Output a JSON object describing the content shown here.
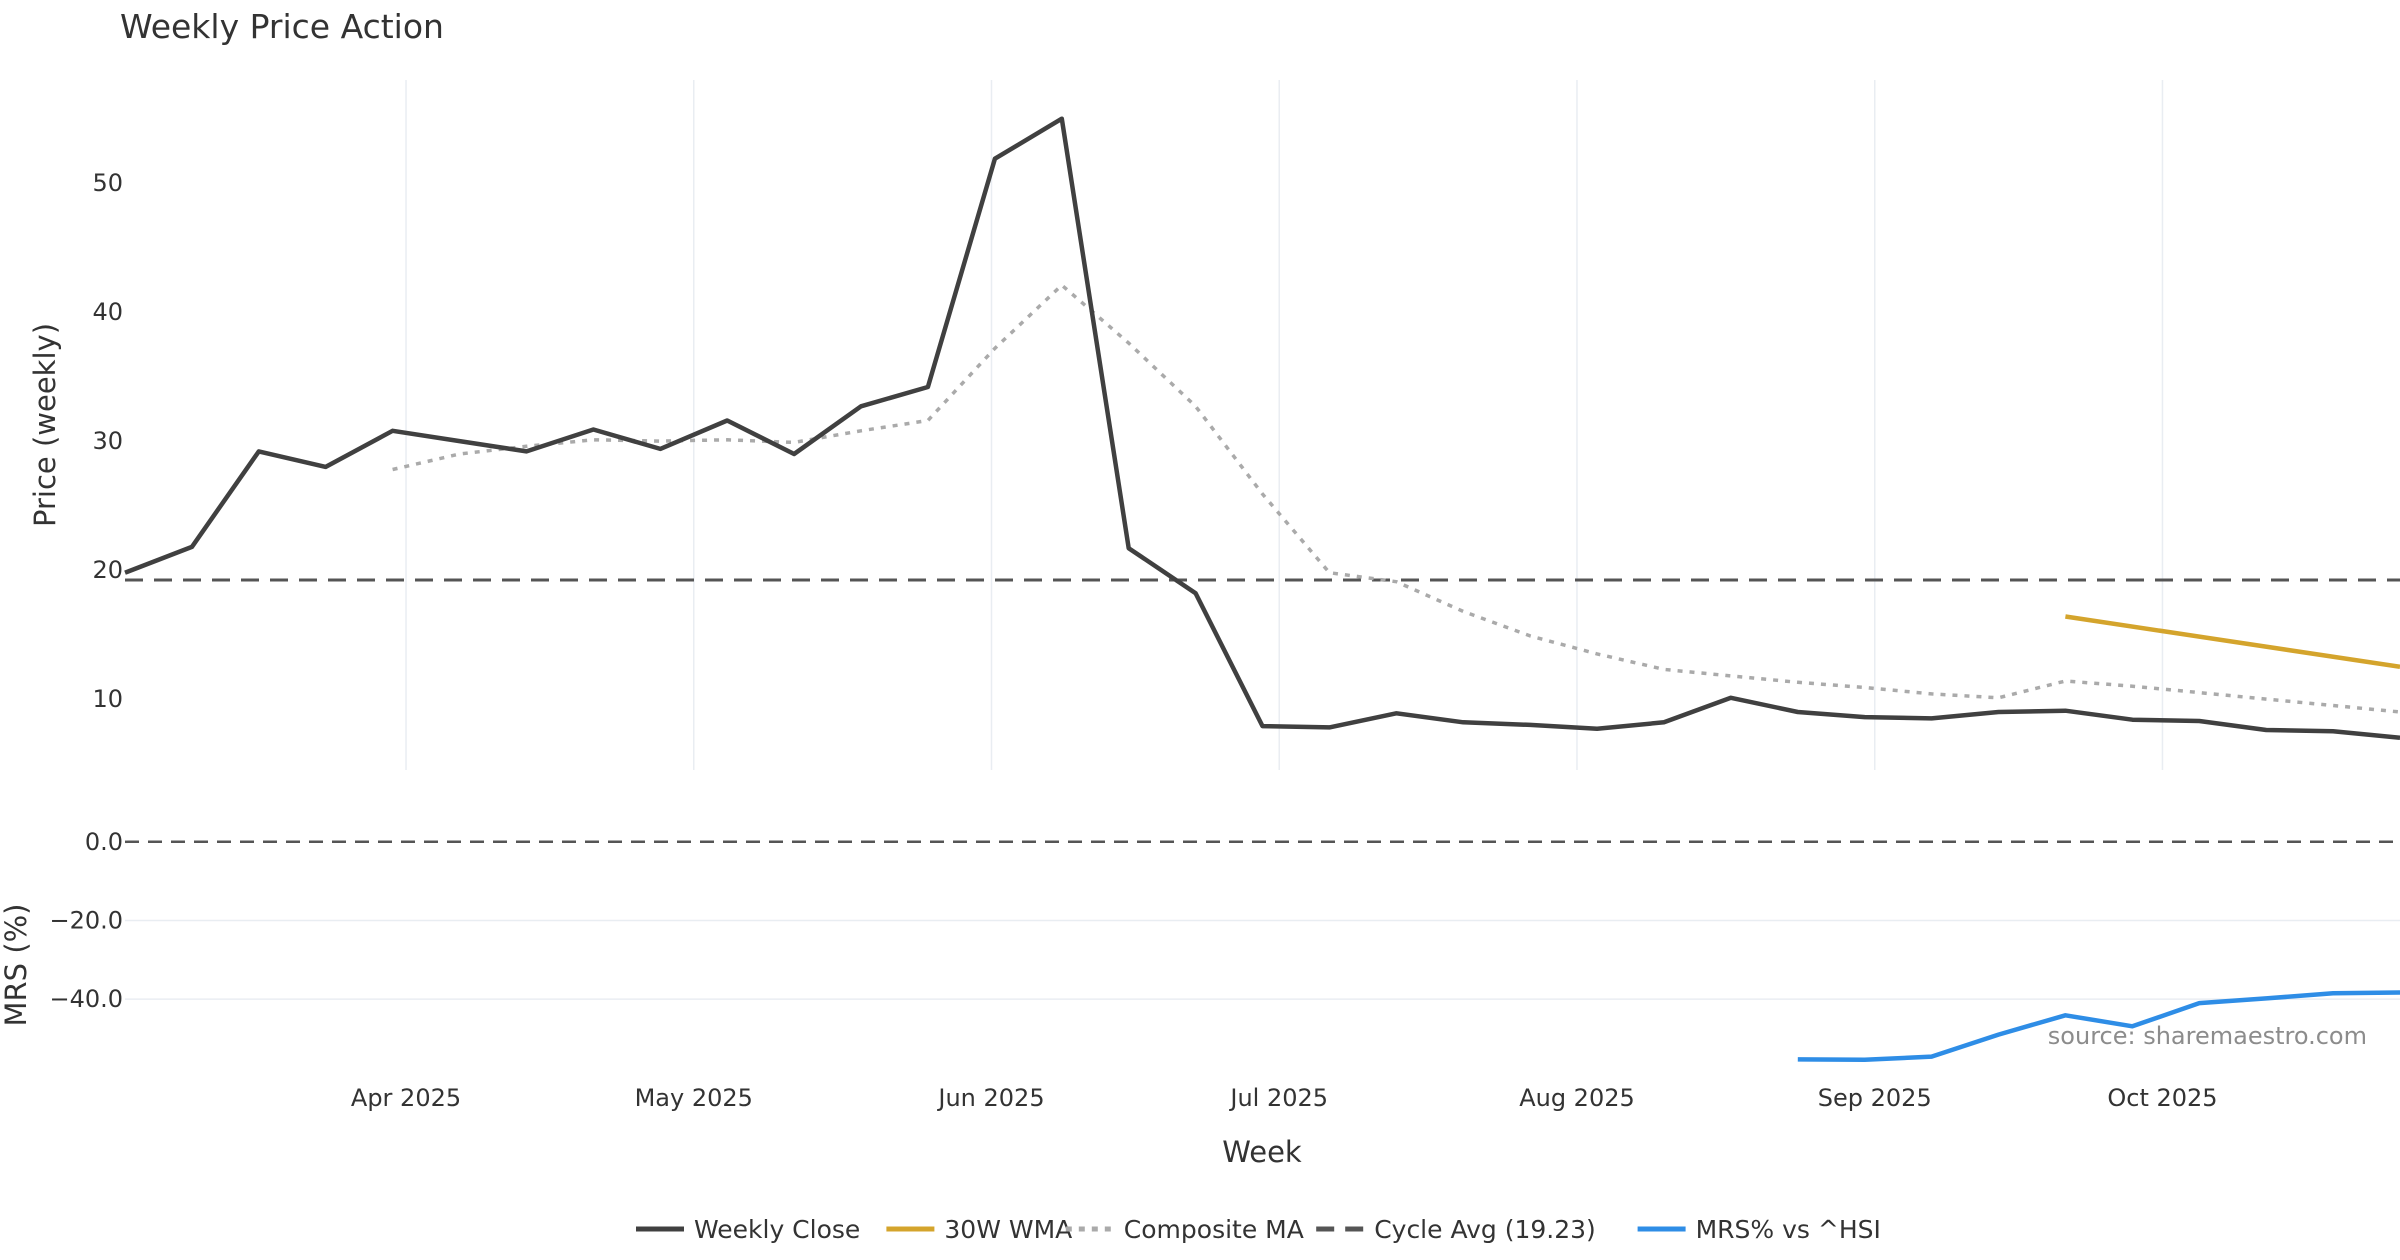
{
  "chart_data": {
    "type": "line",
    "title": "Weekly Price Action",
    "source_note": "source: sharemaestro.com",
    "xlabel": "Week",
    "x_ticks": [
      {
        "week": 4.2,
        "label": "Apr 2025"
      },
      {
        "week": 8.5,
        "label": "May 2025"
      },
      {
        "week": 12.95,
        "label": "Jun 2025"
      },
      {
        "week": 17.25,
        "label": "Jul 2025"
      },
      {
        "week": 21.7,
        "label": "Aug 2025"
      },
      {
        "week": 26.15,
        "label": "Sep 2025"
      },
      {
        "week": 30.45,
        "label": "Oct 2025"
      }
    ],
    "x_range": [
      0,
      34
    ],
    "price_panel": {
      "ylabel": "Price (weekly)",
      "ylim": [
        4.5,
        58
      ],
      "yticks": [
        10,
        20,
        30,
        40,
        50
      ],
      "series": [
        {
          "name": "Weekly Close",
          "color": "#404040",
          "style": "solid",
          "x": [
            0,
            1,
            2,
            3,
            4,
            5,
            6,
            7,
            8,
            9,
            10,
            11,
            12,
            13,
            14,
            15,
            16,
            17,
            18,
            19,
            20,
            21,
            22,
            23,
            24,
            25,
            26,
            27,
            28,
            29,
            30,
            31,
            32,
            33,
            34
          ],
          "values": [
            19.8,
            21.8,
            29.2,
            28.0,
            30.8,
            30.0,
            29.2,
            30.9,
            29.4,
            31.6,
            29.0,
            32.7,
            34.2,
            51.9,
            55.0,
            21.7,
            18.2,
            7.9,
            7.8,
            8.9,
            8.2,
            8.0,
            7.7,
            8.2,
            10.1,
            9.0,
            8.6,
            8.5,
            9.0,
            9.1,
            8.4,
            8.3,
            7.6,
            7.5,
            7.0
          ]
        },
        {
          "name": "30W WMA",
          "color": "#d4a42c",
          "style": "solid",
          "x": [
            29,
            34
          ],
          "values": [
            16.4,
            12.5
          ]
        },
        {
          "name": "Composite MA",
          "color": "#aaaaaa",
          "style": "dotted",
          "x": [
            4,
            5,
            6,
            7,
            8,
            9,
            10,
            11,
            12,
            13,
            14,
            15,
            16,
            17,
            18,
            19,
            20,
            21,
            22,
            23,
            24,
            25,
            26,
            27,
            28,
            29,
            30,
            31,
            32,
            33,
            34
          ],
          "values": [
            27.8,
            29.0,
            29.6,
            30.1,
            30.0,
            30.1,
            29.9,
            30.8,
            31.6,
            37.2,
            42.1,
            37.6,
            32.7,
            25.9,
            19.8,
            19.1,
            16.8,
            14.9,
            13.5,
            12.3,
            11.8,
            11.3,
            10.9,
            10.4,
            10.1,
            11.4,
            11.0,
            10.5,
            10.0,
            9.5,
            9.0
          ]
        }
      ],
      "reference_line": {
        "name": "Cycle Avg (19.23)",
        "value": 19.23,
        "color": "#555555",
        "style": "dashed"
      }
    },
    "mrs_panel": {
      "ylabel": "MRS (%)",
      "ylim": [
        -58,
        3
      ],
      "yticks": [
        0.0,
        -20.0,
        -40.0
      ],
      "ytick_labels": [
        "0.0",
        "−20.0",
        "−40.0"
      ],
      "zero_line": {
        "value": 0,
        "color": "#555555",
        "style": "dashed"
      },
      "series": [
        {
          "name": "MRS% vs ^HSI",
          "color": "#2e8de6",
          "style": "solid",
          "x": [
            25,
            26,
            27,
            28,
            29,
            30,
            31,
            32,
            33,
            34
          ],
          "values": [
            -55.3,
            -55.4,
            -54.6,
            -49.0,
            -44.1,
            -46.9,
            -41.0,
            -39.8,
            -38.5,
            -38.3
          ]
        }
      ]
    },
    "legend": {
      "placement": "bottom-center",
      "entries": [
        {
          "label": "Weekly Close",
          "color": "#404040",
          "style": "solid"
        },
        {
          "label": "30W WMA",
          "color": "#d4a42c",
          "style": "solid"
        },
        {
          "label": "Composite MA",
          "color": "#aaaaaa",
          "style": "dotted"
        },
        {
          "label": "Cycle Avg (19.23)",
          "color": "#555555",
          "style": "dashed"
        },
        {
          "label": "MRS% vs ^HSI",
          "color": "#2e8de6",
          "style": "solid"
        }
      ]
    }
  }
}
